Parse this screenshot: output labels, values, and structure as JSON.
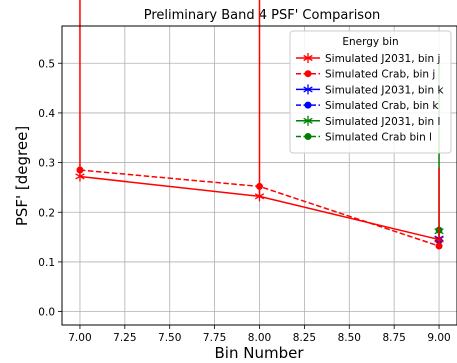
{
  "chart_data": {
    "type": "line",
    "title": "Preliminary Band 4 PSF' Comparison",
    "xlabel": "Bin Number",
    "ylabel": "PSF' [degree]",
    "xlim": [
      6.9,
      9.1
    ],
    "ylim": [
      -0.027,
      0.575
    ],
    "xticks": [
      7.0,
      7.25,
      7.5,
      7.75,
      8.0,
      8.25,
      8.5,
      8.75,
      9.0
    ],
    "xtick_labels": [
      "7.00",
      "7.25",
      "7.50",
      "7.75",
      "8.00",
      "8.25",
      "8.50",
      "8.75",
      "9.00"
    ],
    "yticks": [
      0.0,
      0.1,
      0.2,
      0.3,
      0.4,
      0.5
    ],
    "ytick_labels": [
      "0.0",
      "0.1",
      "0.2",
      "0.3",
      "0.4",
      "0.5"
    ],
    "grid": true,
    "legend": {
      "title": "Energy bin",
      "placement": "top-right",
      "entries": [
        "Simulated J2031, bin j",
        "Simulated Crab, bin j",
        "Simulated J2031, bin k",
        "Simulated Crab, bin k",
        "Simulated J2031, bin l",
        "Simulated Crab bin l"
      ]
    },
    "series": [
      {
        "name": "Simulated J2031, bin j",
        "color": "#ff0000",
        "linestyle": "solid",
        "marker": "star",
        "x": [
          7.0,
          8.0,
          9.0
        ],
        "y": [
          0.272,
          0.232,
          0.145
        ],
        "yerr_low": [
          0.0,
          0.0,
          0.0
        ],
        "yerr_high": [
          0.545,
          0.462,
          0.145
        ]
      },
      {
        "name": "Simulated Crab, bin j",
        "color": "#ff0000",
        "linestyle": "dashed",
        "marker": "circle",
        "x": [
          7.0,
          8.0,
          9.0
        ],
        "y": [
          0.285,
          0.252,
          0.132
        ]
      },
      {
        "name": "Simulated J2031, bin k",
        "color": "#0000ff",
        "linestyle": "solid",
        "marker": "star",
        "x": [
          9.0
        ],
        "y": [
          0.147
        ]
      },
      {
        "name": "Simulated Crab, bin k",
        "color": "#0000ff",
        "linestyle": "dashed",
        "marker": "circle",
        "x": [
          9.0
        ],
        "y": [
          0.143
        ]
      },
      {
        "name": "Simulated J2031, bin l",
        "color": "#008000",
        "linestyle": "solid",
        "marker": "star",
        "x": [
          9.0
        ],
        "y": [
          0.162
        ],
        "yerr_low": [
          0.012
        ],
        "yerr_high": [
          0.338
        ]
      },
      {
        "name": "Simulated Crab bin l",
        "color": "#008000",
        "linestyle": "dashed",
        "marker": "circle",
        "x": [
          9.0
        ],
        "y": [
          0.164
        ]
      }
    ]
  }
}
